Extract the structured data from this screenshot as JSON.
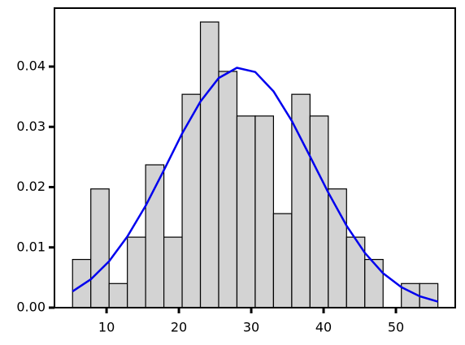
{
  "chart_data": {
    "type": "histogram",
    "bins": [
      5.3,
      7.825,
      10.35,
      12.875,
      15.4,
      17.925,
      20.45,
      22.975,
      25.5,
      28.025,
      30.55,
      33.075,
      35.6,
      38.125,
      40.65,
      43.175,
      45.7,
      48.225,
      50.75,
      53.275,
      55.8
    ],
    "values": [
      0.008,
      0.0197,
      0.004,
      0.0117,
      0.0237,
      0.0117,
      0.0354,
      0.0474,
      0.0392,
      0.0318,
      0.0318,
      0.0156,
      0.0354,
      0.0318,
      0.0197,
      0.0117,
      0.008,
      0,
      0.004,
      0.004
    ],
    "color": "#d3d3d3",
    "line": {
      "color": "#0000ee",
      "x": [
        5.3,
        7.825,
        10.35,
        12.875,
        15.4,
        17.925,
        20.45,
        22.975,
        25.5,
        28.025,
        30.55,
        33.075,
        35.6,
        38.125,
        40.65,
        43.175,
        45.7,
        48.225,
        50.75,
        53.275,
        55.8
      ],
      "values": [
        0.0027,
        0.0047,
        0.0077,
        0.0118,
        0.0169,
        0.0228,
        0.0289,
        0.0342,
        0.0381,
        0.0398,
        0.0391,
        0.0359,
        0.031,
        0.0251,
        0.0191,
        0.0136,
        0.0091,
        0.0057,
        0.0034,
        0.0019,
        0.001
      ]
    },
    "xlim": [
      2.8,
      58.2
    ],
    "ylim": [
      0,
      0.0497
    ],
    "xticks": [
      10,
      20,
      30,
      40,
      50
    ],
    "yticks": [
      {
        "value": 0,
        "label": "0.00"
      },
      {
        "value": 0.01,
        "label": "0.01"
      },
      {
        "value": 0.02,
        "label": "0.02"
      },
      {
        "value": 0.03,
        "label": "0.03"
      },
      {
        "value": 0.04,
        "label": "0.04"
      }
    ]
  }
}
